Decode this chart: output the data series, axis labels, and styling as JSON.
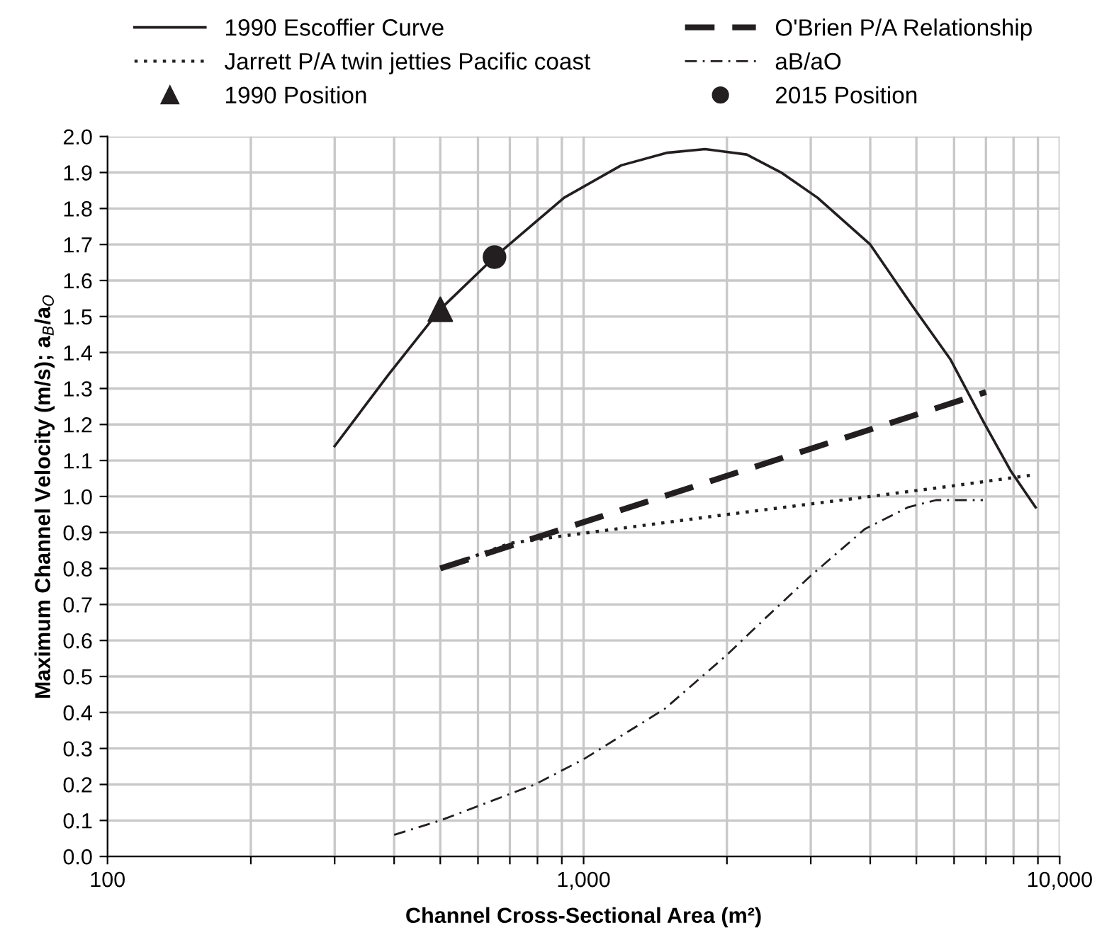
{
  "chart_data": {
    "type": "line",
    "xlabel": "Channel Cross-Sectional Area (m²)",
    "ylabel": "Maximum Channel Velocity (m/s); a$_{B}$/a$_{O}$",
    "log": "x",
    "xlim": [
      100,
      10000
    ],
    "xticks": [
      {
        "value": 100,
        "label": "100"
      },
      {
        "value": 200,
        "label": null
      },
      {
        "value": 300,
        "label": null
      },
      {
        "value": 400,
        "label": null
      },
      {
        "value": 500,
        "label": null
      },
      {
        "value": 600,
        "label": null
      },
      {
        "value": 700,
        "label": null
      },
      {
        "value": 800,
        "label": null
      },
      {
        "value": 900,
        "label": null
      },
      {
        "value": 1000,
        "label": "1,000"
      },
      {
        "value": 2000,
        "label": null
      },
      {
        "value": 3000,
        "label": null
      },
      {
        "value": 4000,
        "label": null
      },
      {
        "value": 5000,
        "label": null
      },
      {
        "value": 6000,
        "label": null
      },
      {
        "value": 7000,
        "label": null
      },
      {
        "value": 8000,
        "label": null
      },
      {
        "value": 9000,
        "label": null
      },
      {
        "value": 10000,
        "label": "10,000"
      }
    ],
    "ylim": [
      0,
      2.0
    ],
    "yticks": [
      {
        "value": 0,
        "label": "0.0"
      },
      {
        "value": 0.1,
        "label": "0.1"
      },
      {
        "value": 0.2,
        "label": "0.2"
      },
      {
        "value": 0.3,
        "label": "0.3"
      },
      {
        "value": 0.4,
        "label": "0.4"
      },
      {
        "value": 0.5,
        "label": "0.5"
      },
      {
        "value": 0.6,
        "label": "0.6"
      },
      {
        "value": 0.7,
        "label": "0.7"
      },
      {
        "value": 0.8,
        "label": "0.8"
      },
      {
        "value": 0.9,
        "label": "0.9"
      },
      {
        "value": 1.0,
        "label": "1.0"
      },
      {
        "value": 1.1,
        "label": "1.1"
      },
      {
        "value": 1.2,
        "label": "1.2"
      },
      {
        "value": 1.3,
        "label": "1.3"
      },
      {
        "value": 1.4,
        "label": "1.4"
      },
      {
        "value": 1.5,
        "label": "1.5"
      },
      {
        "value": 1.6,
        "label": "1.6"
      },
      {
        "value": 1.7,
        "label": "1.7"
      },
      {
        "value": 1.8,
        "label": "1.8"
      },
      {
        "value": 1.9,
        "label": "1.9"
      },
      {
        "value": 2.0,
        "label": "2.0"
      }
    ],
    "grid": true,
    "legend": "top",
    "series": [
      {
        "name": "1990 Escoffier Curve",
        "line_style": "solid",
        "color": "#231f20",
        "x": [
          300,
          390,
          500,
          650,
          910,
          1200,
          1500,
          1800,
          2200,
          2600,
          3100,
          4000,
          4900,
          5900,
          6900,
          7900,
          8900
        ],
        "values": [
          1.14,
          1.34,
          1.52,
          1.665,
          1.83,
          1.92,
          1.955,
          1.965,
          1.95,
          1.9,
          1.83,
          1.7,
          1.53,
          1.38,
          1.21,
          1.07,
          0.97
        ]
      },
      {
        "name": "O'Brien P/A Relationship",
        "line_style": "dashed",
        "color": "#231f20",
        "x": [
          500,
          7000
        ],
        "values": [
          0.8,
          1.29
        ]
      },
      {
        "name": "Jarrett P/A twin jetties Pacific coast",
        "line_style": "dotted",
        "color": "#231f20",
        "x": [
          500,
          700,
          900,
          2000,
          4000,
          6000,
          8800
        ],
        "values": [
          0.8,
          0.87,
          0.89,
          0.95,
          1.0,
          1.03,
          1.06
        ]
      },
      {
        "name": "aB/aO",
        "line_style": "dashdot",
        "color": "#231f20",
        "x": [
          400,
          500,
          790,
          1000,
          1480,
          2000,
          2400,
          3000,
          3900,
          4800,
          5500,
          6900
        ],
        "values": [
          0.06,
          0.1,
          0.2,
          0.27,
          0.41,
          0.56,
          0.66,
          0.78,
          0.91,
          0.97,
          0.99,
          0.99
        ]
      },
      {
        "name": "1990 Position",
        "type": "scatter",
        "marker": "triangle",
        "color": "#231f20",
        "x": [
          500
        ],
        "values": [
          1.52
        ]
      },
      {
        "name": "2015 Position",
        "type": "scatter",
        "marker": "circle",
        "color": "#231f20",
        "x": [
          650
        ],
        "values": [
          1.665
        ]
      }
    ]
  }
}
